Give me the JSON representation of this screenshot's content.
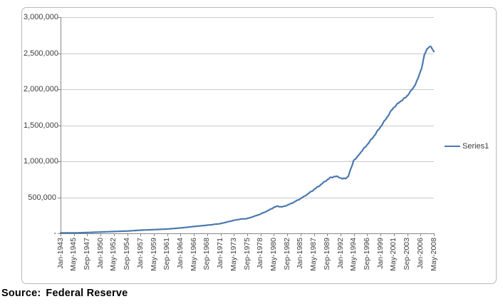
{
  "source_note": {
    "prefix": "Source:",
    "agency": "Federal Reserve"
  },
  "chart_data": {
    "type": "line",
    "title": "",
    "xlabel": "",
    "ylabel": "",
    "grid": {
      "horizontal": true,
      "vertical": false
    },
    "colors": {
      "series_line": "#4b79af",
      "gridline": "#c9c9c9",
      "axis": "#868686",
      "frame_border": "#b9b9b9",
      "text": "#3d3d3d"
    },
    "legend": {
      "position": "right",
      "entries": [
        "Series1"
      ]
    },
    "y_axis": {
      "min": 0,
      "max": 3000000,
      "tick_interval": 500000,
      "ticks": [
        {
          "label": "3,000,000",
          "value": 3000000
        },
        {
          "label": "2,500,000",
          "value": 2500000
        },
        {
          "label": "2,000,000",
          "value": 2000000
        },
        {
          "label": "1,500,000",
          "value": 1500000
        },
        {
          "label": "1,000,000",
          "value": 1000000
        },
        {
          "label": "500,000",
          "value": 500000
        },
        {
          "label": "-",
          "value": 0
        }
      ]
    },
    "x_axis": {
      "unit": "months since Jan-1943",
      "total_months": 784,
      "months_per_tick": 28,
      "tick_labels": [
        "Jan-1943",
        "May-1945",
        "Sep-1947",
        "Jan-1950",
        "May-1952",
        "Sep-1954",
        "Jan-1957",
        "May-1959",
        "Sep-1961",
        "Jan-1964",
        "May-1966",
        "Sep-1968",
        "Jan-1971",
        "May-1973",
        "Sep-1975",
        "Jan-1978",
        "May-1980",
        "Sep-1982",
        "Jan-1985",
        "May-1987",
        "Sep-1989",
        "Jan-1992",
        "May-1994",
        "Sep-1996",
        "Jan-1999",
        "May-2001",
        "Sep-2003",
        "Jan-2006",
        "May-2008"
      ]
    },
    "series": [
      {
        "name": "Series1",
        "keypoints_month_value": [
          [
            0,
            5500
          ],
          [
            28,
            5700
          ],
          [
            56,
            11500
          ],
          [
            84,
            18500
          ],
          [
            112,
            25500
          ],
          [
            140,
            32000
          ],
          [
            168,
            44000
          ],
          [
            196,
            51500
          ],
          [
            224,
            60000
          ],
          [
            252,
            75000
          ],
          [
            280,
            95000
          ],
          [
            308,
            113000
          ],
          [
            336,
            135000
          ],
          [
            350,
            158000
          ],
          [
            364,
            180000
          ],
          [
            378,
            198000
          ],
          [
            392,
            205000
          ],
          [
            406,
            235000
          ],
          [
            420,
            268000
          ],
          [
            434,
            310000
          ],
          [
            448,
            360000
          ],
          [
            456,
            378000
          ],
          [
            464,
            365000
          ],
          [
            476,
            390000
          ],
          [
            490,
            432000
          ],
          [
            504,
            482000
          ],
          [
            518,
            540000
          ],
          [
            532,
            607000
          ],
          [
            546,
            672000
          ],
          [
            556,
            725000
          ],
          [
            566,
            770000
          ],
          [
            576,
            790000
          ],
          [
            584,
            782000
          ],
          [
            592,
            757000
          ],
          [
            598,
            762000
          ],
          [
            604,
            790000
          ],
          [
            610,
            900000
          ],
          [
            615,
            1000000
          ],
          [
            628,
            1105000
          ],
          [
            642,
            1215000
          ],
          [
            656,
            1330000
          ],
          [
            670,
            1460000
          ],
          [
            684,
            1595000
          ],
          [
            698,
            1735000
          ],
          [
            712,
            1822000
          ],
          [
            726,
            1893000
          ],
          [
            734,
            1960000
          ],
          [
            742,
            2032000
          ],
          [
            750,
            2135000
          ],
          [
            758,
            2290000
          ],
          [
            765,
            2500000
          ],
          [
            770,
            2560000
          ],
          [
            774,
            2592000
          ],
          [
            778,
            2585000
          ],
          [
            784,
            2522000
          ]
        ],
        "values_at_tick_labels": [
          5500,
          5700,
          11500,
          18500,
          25500,
          32000,
          44000,
          51500,
          60000,
          75000,
          95000,
          113000,
          135000,
          180000,
          205000,
          268000,
          360000,
          390000,
          482000,
          607000,
          743000,
          770000,
          1008000,
          1231000,
          1479000,
          1747000,
          1910000,
          2251000,
          2522000
        ]
      }
    ]
  }
}
